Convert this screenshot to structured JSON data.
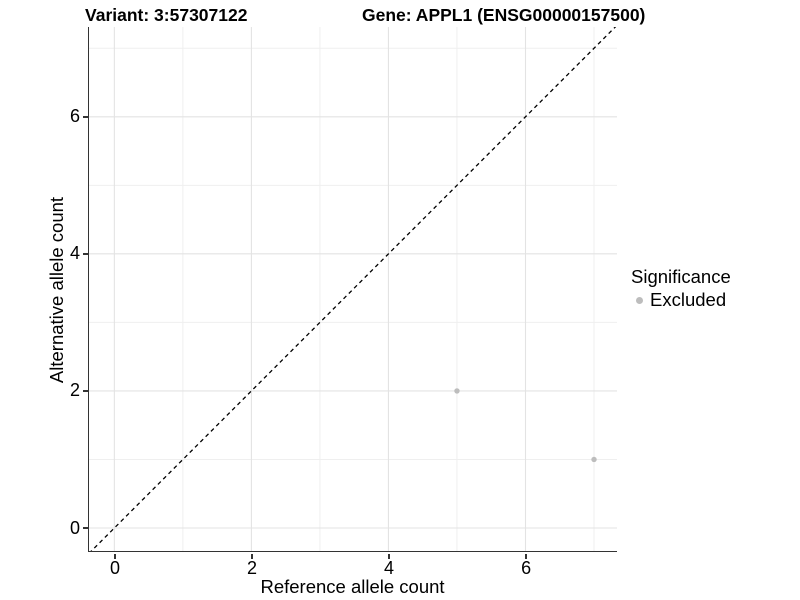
{
  "header": {
    "variant_title": "Variant: 3:57307122",
    "gene_title": "Gene: APPL1 (ENSG00000157500)"
  },
  "chart_data": {
    "type": "scatter",
    "xlabel": "Reference allele count",
    "ylabel": "Alternative allele count",
    "xlim": [
      -0.37,
      7.35
    ],
    "ylim": [
      -0.35,
      7.31
    ],
    "x_major_ticks": [
      0,
      2,
      4,
      6
    ],
    "x_minor_ticks": [
      1,
      3,
      5,
      7
    ],
    "y_major_ticks": [
      0,
      2,
      4,
      6
    ],
    "y_minor_ticks": [
      1,
      3,
      5,
      7
    ],
    "grid": true,
    "series": [
      {
        "name": "Excluded",
        "color": "#bdbdbd",
        "points": [
          {
            "x": 5,
            "y": 2
          },
          {
            "x": 7,
            "y": 1
          }
        ]
      }
    ],
    "abline": {
      "slope": 1,
      "intercept": 0,
      "style": "dashed",
      "color": "#000000"
    },
    "legend": {
      "title": "Significance",
      "position": "right",
      "entries": [
        {
          "label": "Excluded",
          "color": "#bdbdbd"
        }
      ]
    },
    "colors": {
      "axis_line": "#333333",
      "grid_major": "#e3e3e3",
      "grid_minor": "#efefef",
      "panel_background": "#ffffff"
    }
  }
}
